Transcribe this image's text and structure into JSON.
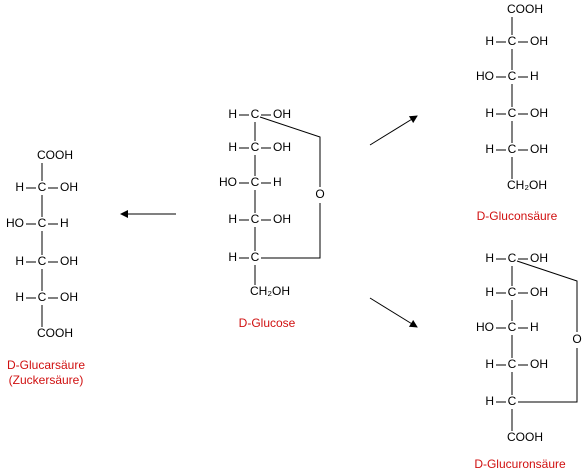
{
  "molecules": [
    {
      "name": [
        "D-Glucarsäure",
        "(Zuckersäure)"
      ],
      "top": "COOH",
      "rows": [
        [
          "H",
          "C",
          "OH"
        ],
        [
          "HO",
          "C",
          "H"
        ],
        [
          "H",
          "C",
          "OH"
        ],
        [
          "H",
          "C",
          "OH"
        ]
      ],
      "bottom": "COOH"
    },
    {
      "name": [
        "D-Glucose"
      ],
      "rows": [
        [
          "H",
          "C",
          "OH"
        ],
        [
          "H",
          "C",
          "OH"
        ],
        [
          "HO",
          "C",
          "H"
        ],
        [
          "H",
          "C",
          "OH"
        ],
        [
          "H",
          "C"
        ]
      ],
      "bottom": "CH₂OH",
      "ring_oxygen": "O"
    },
    {
      "name": [
        "D-Gluconsäure"
      ],
      "top": "COOH",
      "rows": [
        [
          "H",
          "C",
          "OH"
        ],
        [
          "HO",
          "C",
          "H"
        ],
        [
          "H",
          "C",
          "OH"
        ],
        [
          "H",
          "C",
          "OH"
        ]
      ],
      "bottom": "CH₂OH"
    },
    {
      "name": [
        "D-Glucuronsäure"
      ],
      "rows": [
        [
          "H",
          "C",
          "OH"
        ],
        [
          "H",
          "C",
          "OH"
        ],
        [
          "HO",
          "C",
          "H"
        ],
        [
          "H",
          "C",
          "OH"
        ],
        [
          "H",
          "C"
        ]
      ],
      "bottom": "COOH",
      "ring_oxygen": "O"
    }
  ]
}
